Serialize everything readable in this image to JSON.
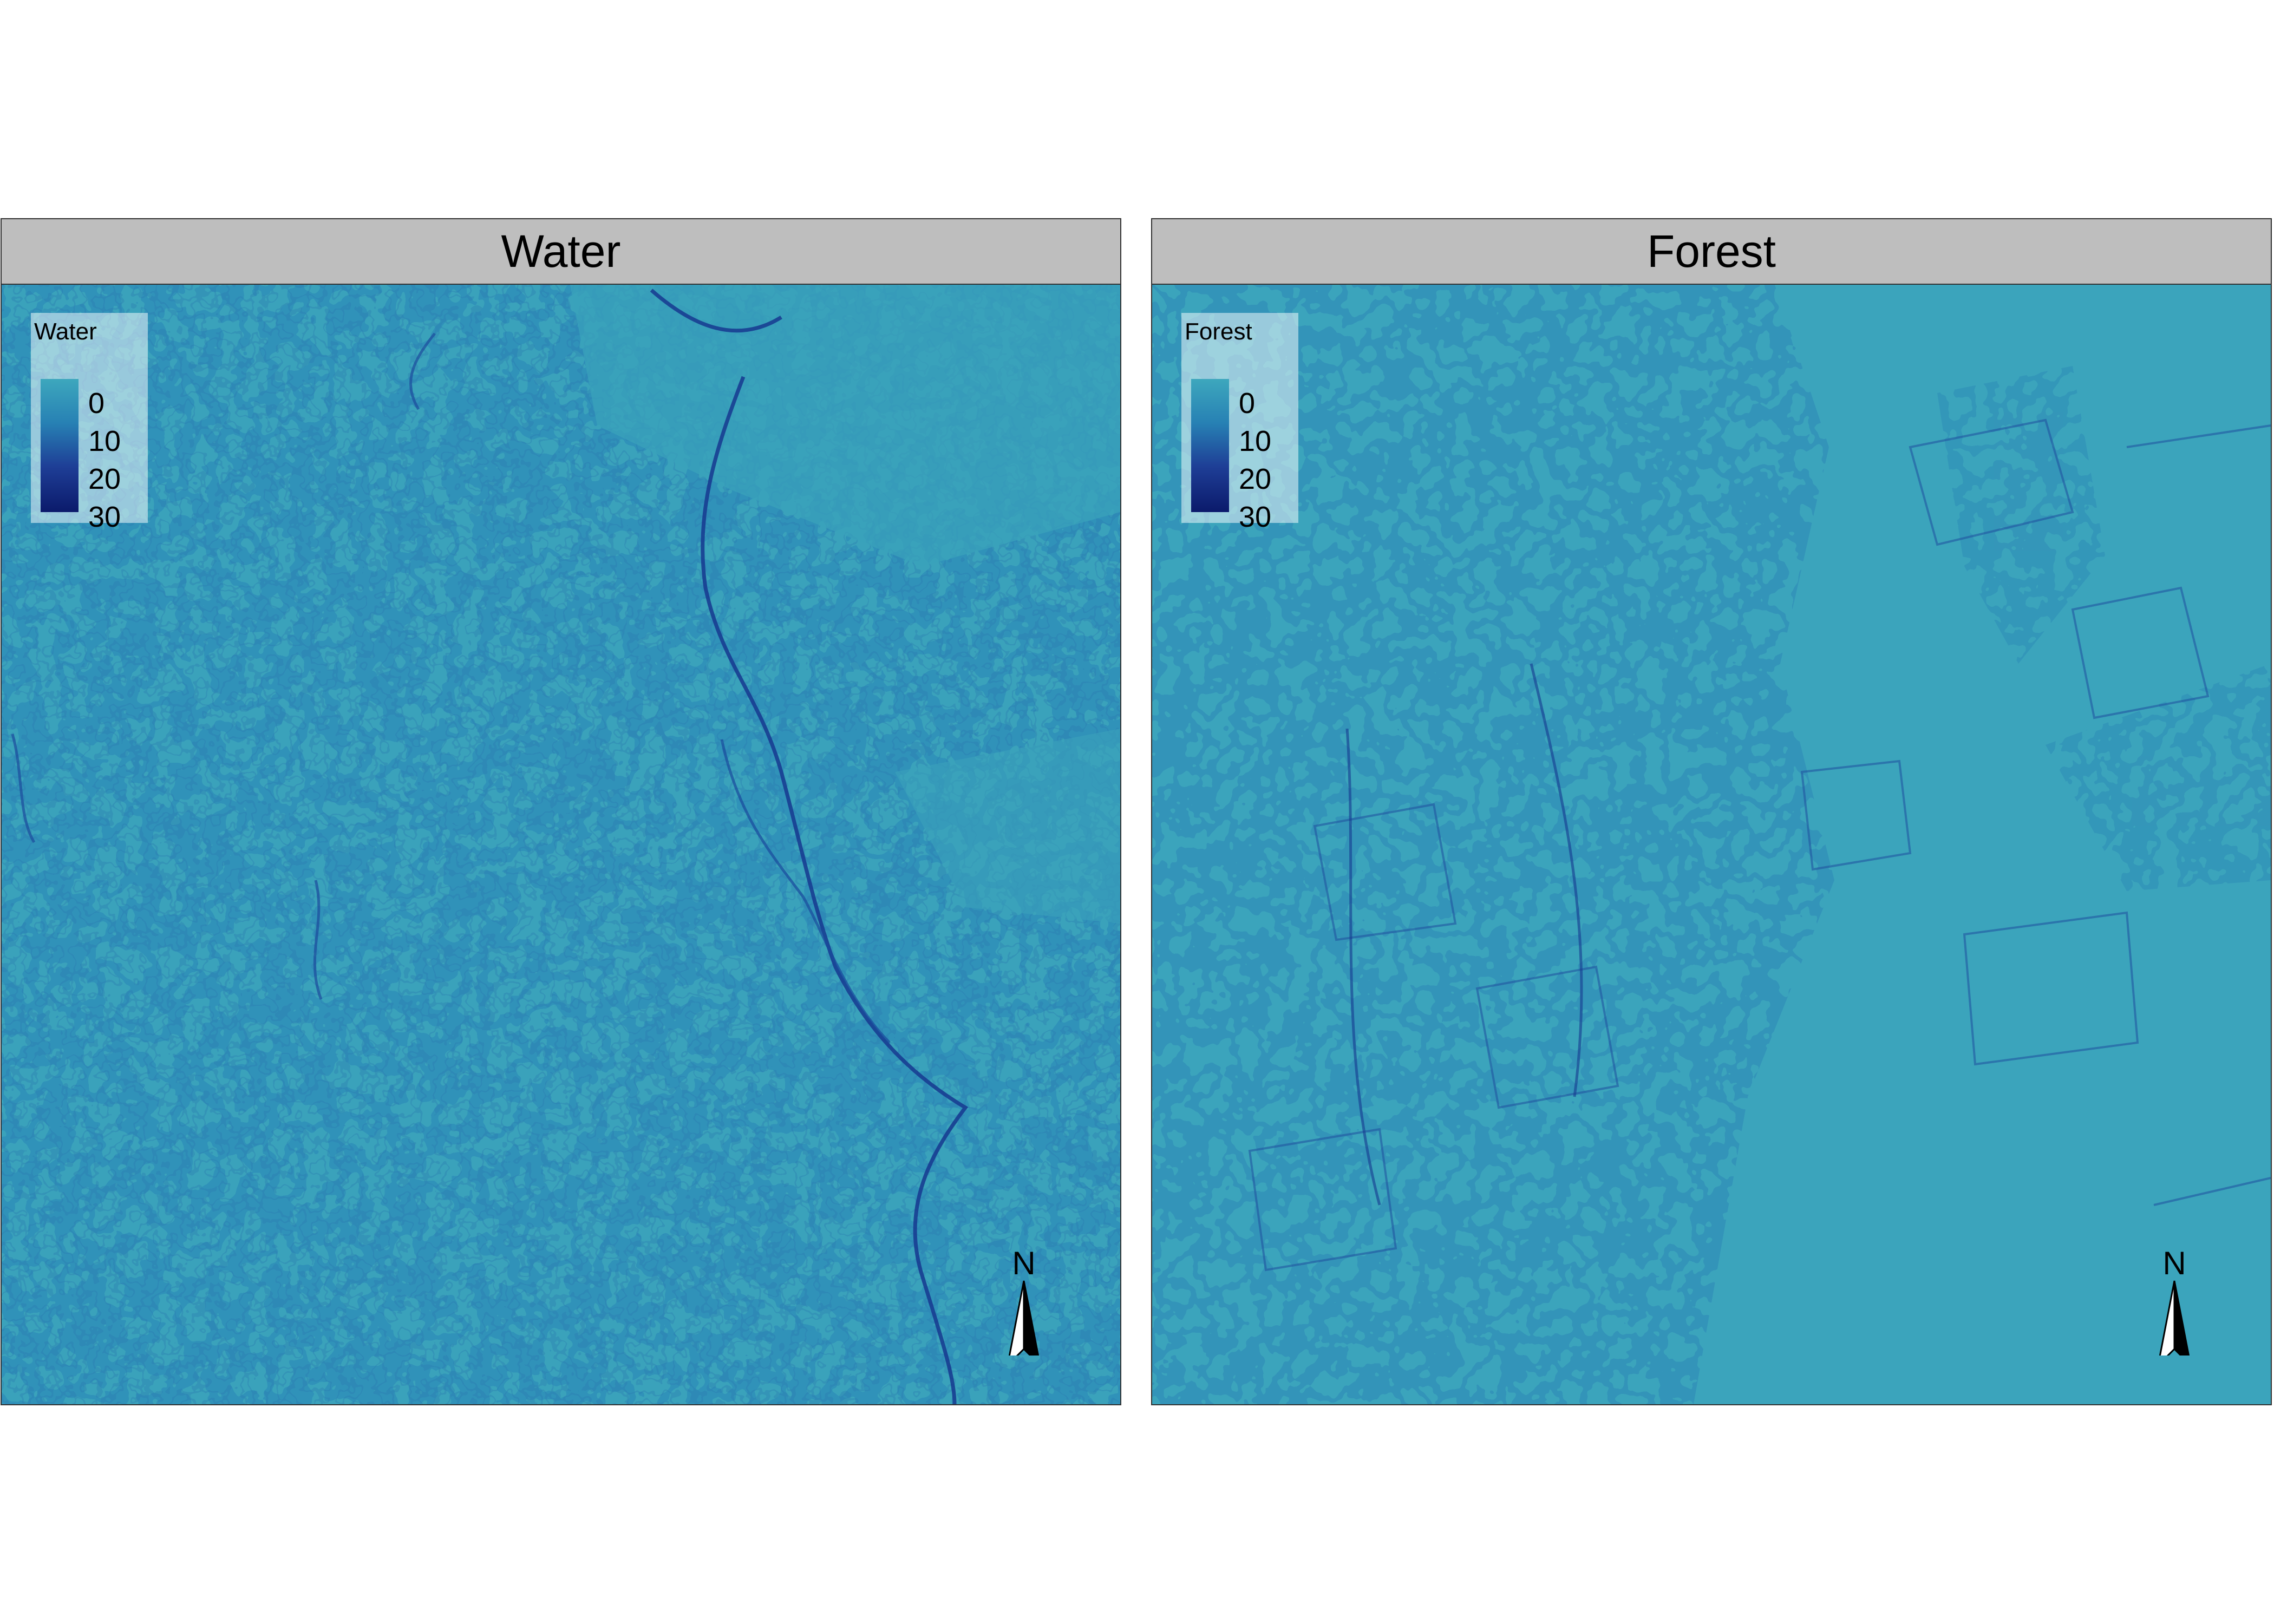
{
  "panels": [
    {
      "title": "Water",
      "legend": {
        "title": "Water",
        "labels": [
          "0",
          "10",
          "20",
          "30"
        ]
      },
      "north_label": "N"
    },
    {
      "title": "Forest",
      "legend": {
        "title": "Forest",
        "labels": [
          "0",
          "10",
          "20",
          "30"
        ]
      },
      "north_label": "N"
    }
  ],
  "colors": {
    "low": "#3da7bd",
    "mid": "#2781b4",
    "high": "#1e3e96",
    "max": "#0b1a6b",
    "strip": "#bebebe"
  },
  "icons": [
    "north-arrow-icon"
  ]
}
